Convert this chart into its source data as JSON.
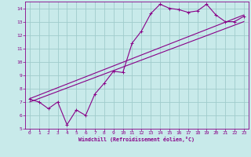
{
  "title": "",
  "xlabel": "Windchill (Refroidissement éolien,°C)",
  "bg_color": "#c8eaea",
  "grid_color": "#a0cccc",
  "line_color": "#880088",
  "xlim": [
    -0.5,
    23.5
  ],
  "ylim": [
    5,
    14.5
  ],
  "xticks": [
    0,
    1,
    2,
    3,
    4,
    5,
    6,
    7,
    8,
    9,
    10,
    11,
    12,
    13,
    14,
    15,
    16,
    17,
    18,
    19,
    20,
    21,
    22,
    23
  ],
  "yticks": [
    5,
    6,
    7,
    8,
    9,
    10,
    11,
    12,
    13,
    14
  ],
  "measured_x": [
    0,
    1,
    2,
    3,
    4,
    5,
    6,
    7,
    8,
    9,
    10,
    11,
    12,
    13,
    14,
    15,
    16,
    17,
    18,
    19,
    20,
    21,
    22,
    23
  ],
  "measured_y": [
    7.2,
    7.0,
    6.5,
    7.0,
    5.3,
    6.4,
    6.0,
    7.6,
    8.4,
    9.3,
    9.2,
    11.4,
    12.3,
    13.6,
    14.3,
    14.0,
    13.9,
    13.7,
    13.8,
    14.3,
    13.5,
    13.0,
    13.0,
    13.4
  ],
  "line1_x": [
    0,
    23
  ],
  "line1_y": [
    7.25,
    13.5
  ],
  "line2_x": [
    0,
    23
  ],
  "line2_y": [
    7.0,
    13.0
  ]
}
